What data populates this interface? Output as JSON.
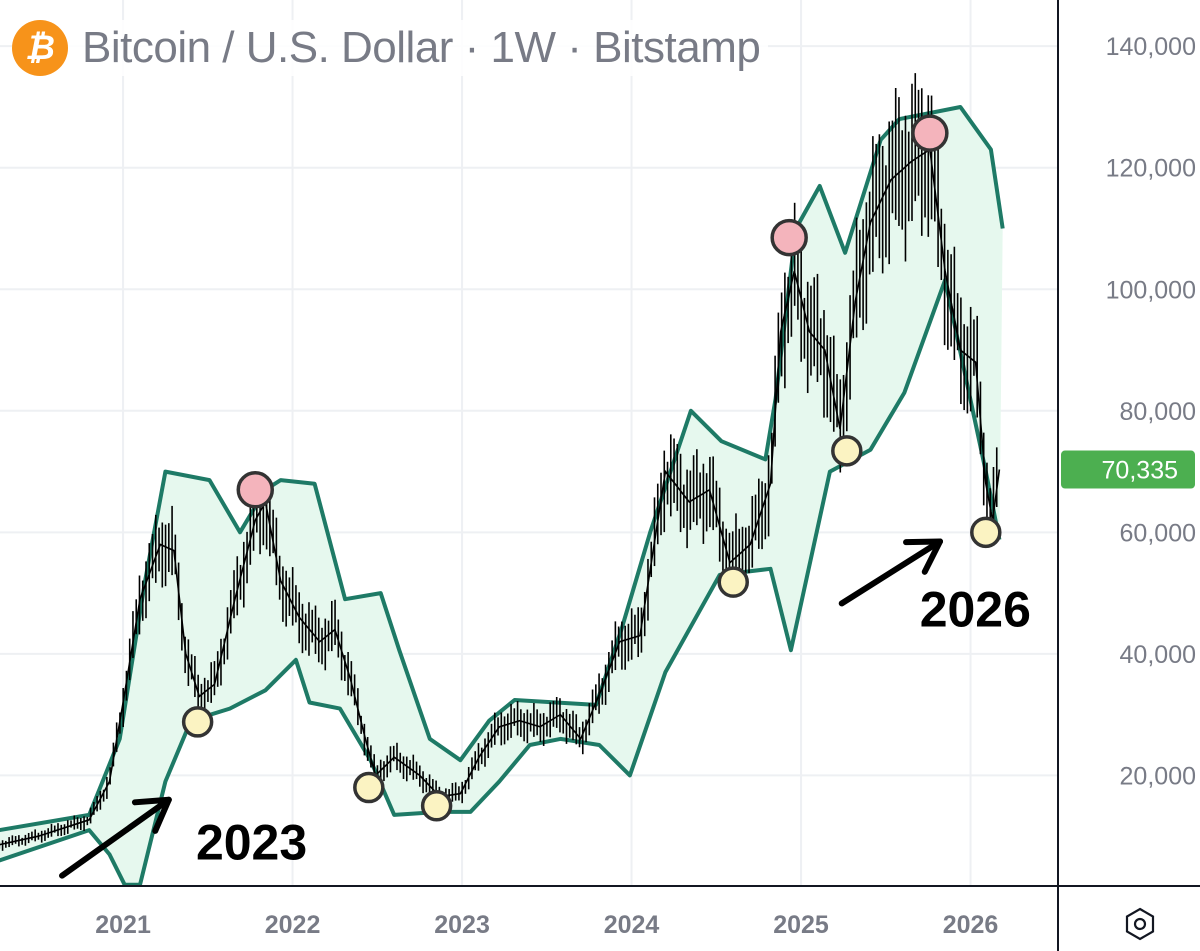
{
  "header": {
    "title": "Bitcoin / U.S. Dollar · 1W · Bitstamp",
    "coin_icon": "bitcoin-icon"
  },
  "colors": {
    "band_stroke": "#1e7a66",
    "band_fill": "#e6f8ee",
    "peak_marker": "#f4b4bc",
    "trough_marker": "#fbf3c2",
    "last_price_bg": "#4caf50",
    "grid": "#eef0f3"
  },
  "settings_icon": "settings-hexagon-icon",
  "chart_data": {
    "type": "line",
    "title": "Bitcoin / U.S. Dollar · 1W · Bitstamp",
    "xlabel": "",
    "ylabel": "",
    "xlim": [
      2020.274,
      2026.516
    ],
    "ylim": [
      1800,
      147600
    ],
    "grid": true,
    "x_ticks": [
      {
        "value": 2021,
        "label": "2021"
      },
      {
        "value": 2022,
        "label": "2022"
      },
      {
        "value": 2023,
        "label": "2023"
      },
      {
        "value": 2024,
        "label": "2024"
      },
      {
        "value": 2025,
        "label": "2025"
      },
      {
        "value": 2026,
        "label": "2026"
      }
    ],
    "y_ticks": [
      {
        "value": 20000,
        "label": "20,000"
      },
      {
        "value": 40000,
        "label": "40,000"
      },
      {
        "value": 60000,
        "label": "60,000"
      },
      {
        "value": 80000,
        "label": "80,000"
      },
      {
        "value": 100000,
        "label": "100,000"
      },
      {
        "value": 120000,
        "label": "120,000"
      },
      {
        "value": 140000,
        "label": "140,000"
      }
    ],
    "last_price": {
      "value": 70335,
      "label": "70,335"
    },
    "series": [
      {
        "name": "price",
        "points": [
          [
            2020.27,
            8600
          ],
          [
            2020.5,
            10000
          ],
          [
            2020.8,
            12700
          ],
          [
            2020.92,
            19000
          ],
          [
            2021.0,
            32000
          ],
          [
            2021.1,
            49000
          ],
          [
            2021.22,
            58000
          ],
          [
            2021.3,
            57000
          ],
          [
            2021.37,
            40000
          ],
          [
            2021.45,
            33000
          ],
          [
            2021.54,
            35000
          ],
          [
            2021.66,
            49000
          ],
          [
            2021.78,
            62000
          ],
          [
            2021.84,
            65000
          ],
          [
            2021.93,
            52000
          ],
          [
            2022.04,
            46000
          ],
          [
            2022.16,
            42000
          ],
          [
            2022.25,
            44000
          ],
          [
            2022.34,
            36000
          ],
          [
            2022.43,
            26000
          ],
          [
            2022.49,
            20000
          ],
          [
            2022.6,
            23000
          ],
          [
            2022.75,
            20000
          ],
          [
            2022.87,
            16500
          ],
          [
            2022.99,
            17000
          ],
          [
            2023.1,
            23000
          ],
          [
            2023.22,
            28000
          ],
          [
            2023.34,
            29000
          ],
          [
            2023.46,
            28000
          ],
          [
            2023.58,
            30000
          ],
          [
            2023.7,
            26000
          ],
          [
            2023.82,
            34000
          ],
          [
            2023.93,
            42000
          ],
          [
            2024.05,
            43000
          ],
          [
            2024.2,
            70000
          ],
          [
            2024.34,
            65000
          ],
          [
            2024.46,
            67000
          ],
          [
            2024.58,
            55000
          ],
          [
            2024.7,
            58000
          ],
          [
            2024.82,
            68000
          ],
          [
            2024.88,
            93000
          ],
          [
            2024.96,
            103000
          ],
          [
            2025.05,
            93000
          ],
          [
            2025.14,
            90000
          ],
          [
            2025.23,
            77000
          ],
          [
            2025.32,
            98000
          ],
          [
            2025.41,
            111000
          ],
          [
            2025.53,
            118000
          ],
          [
            2025.65,
            121000
          ],
          [
            2025.76,
            123000
          ],
          [
            2025.85,
            103000
          ],
          [
            2025.94,
            90000
          ],
          [
            2026.03,
            88000
          ],
          [
            2026.09,
            68000
          ],
          [
            2026.13,
            62000
          ],
          [
            2026.17,
            70335
          ]
        ]
      },
      {
        "name": "upper_band",
        "points": [
          [
            2020.27,
            11000
          ],
          [
            2020.8,
            13500
          ],
          [
            2020.98,
            26000
          ],
          [
            2021.13,
            52000
          ],
          [
            2021.25,
            70000
          ],
          [
            2021.51,
            68600
          ],
          [
            2021.69,
            60000
          ],
          [
            2021.84,
            67000
          ],
          [
            2021.93,
            68600
          ],
          [
            2022.13,
            68000
          ],
          [
            2022.31,
            49000
          ],
          [
            2022.52,
            50000
          ],
          [
            2022.63,
            40600
          ],
          [
            2022.81,
            26000
          ],
          [
            2022.99,
            22500
          ],
          [
            2023.16,
            29000
          ],
          [
            2023.31,
            32400
          ],
          [
            2023.79,
            31600
          ],
          [
            2023.94,
            44000
          ],
          [
            2024.11,
            60000
          ],
          [
            2024.35,
            80000
          ],
          [
            2024.53,
            75000
          ],
          [
            2024.79,
            72000
          ],
          [
            2024.85,
            82000
          ],
          [
            2024.97,
            110000
          ],
          [
            2025.11,
            117000
          ],
          [
            2025.26,
            106000
          ],
          [
            2025.47,
            124600
          ],
          [
            2025.58,
            128000
          ],
          [
            2025.94,
            130000
          ],
          [
            2026.12,
            123000
          ],
          [
            2026.19,
            110000
          ]
        ]
      },
      {
        "name": "lower_band",
        "points": [
          [
            2020.27,
            6000
          ],
          [
            2020.8,
            11000
          ],
          [
            2020.92,
            7000
          ],
          [
            2021.01,
            2000
          ],
          [
            2021.1,
            2000
          ],
          [
            2021.25,
            19000
          ],
          [
            2021.4,
            29000
          ],
          [
            2021.63,
            31000
          ],
          [
            2021.84,
            34000
          ],
          [
            2022.02,
            39000
          ],
          [
            2022.1,
            32000
          ],
          [
            2022.28,
            31000
          ],
          [
            2022.46,
            22500
          ],
          [
            2022.6,
            13500
          ],
          [
            2022.87,
            14000
          ],
          [
            2023.05,
            14000
          ],
          [
            2023.22,
            19000
          ],
          [
            2023.4,
            25000
          ],
          [
            2023.58,
            26000
          ],
          [
            2023.81,
            25000
          ],
          [
            2023.99,
            20000
          ],
          [
            2024.2,
            37000
          ],
          [
            2024.52,
            53000
          ],
          [
            2024.82,
            54000
          ],
          [
            2024.94,
            40600
          ],
          [
            2025.17,
            70000
          ],
          [
            2025.41,
            73600
          ],
          [
            2025.61,
            83000
          ],
          [
            2025.85,
            101500
          ],
          [
            2026.0,
            81800
          ],
          [
            2026.09,
            70000
          ],
          [
            2026.17,
            58800
          ]
        ]
      }
    ],
    "markers": [
      {
        "type": "peak",
        "x": 2021.78,
        "y": 67000
      },
      {
        "type": "peak",
        "x": 2024.93,
        "y": 108500
      },
      {
        "type": "peak",
        "x": 2025.76,
        "y": 125700
      },
      {
        "type": "trough",
        "x": 2021.44,
        "y": 28800
      },
      {
        "type": "trough",
        "x": 2022.45,
        "y": 18000
      },
      {
        "type": "trough",
        "x": 2022.85,
        "y": 15000
      },
      {
        "type": "trough",
        "x": 2024.6,
        "y": 51800
      },
      {
        "type": "trough",
        "x": 2025.27,
        "y": 73400
      },
      {
        "type": "trough",
        "x": 2026.09,
        "y": 60000
      }
    ],
    "annotations": [
      {
        "text": "2023",
        "arrow_from": [
          2020.64,
          3500
        ],
        "arrow_to": [
          2021.27,
          16000
        ],
        "text_at": [
          2021.43,
          6200
        ]
      },
      {
        "text": "2026",
        "arrow_from": [
          2025.24,
          48300
        ],
        "arrow_to": [
          2025.82,
          58500
        ],
        "text_at": [
          2025.7,
          44500
        ]
      }
    ]
  }
}
